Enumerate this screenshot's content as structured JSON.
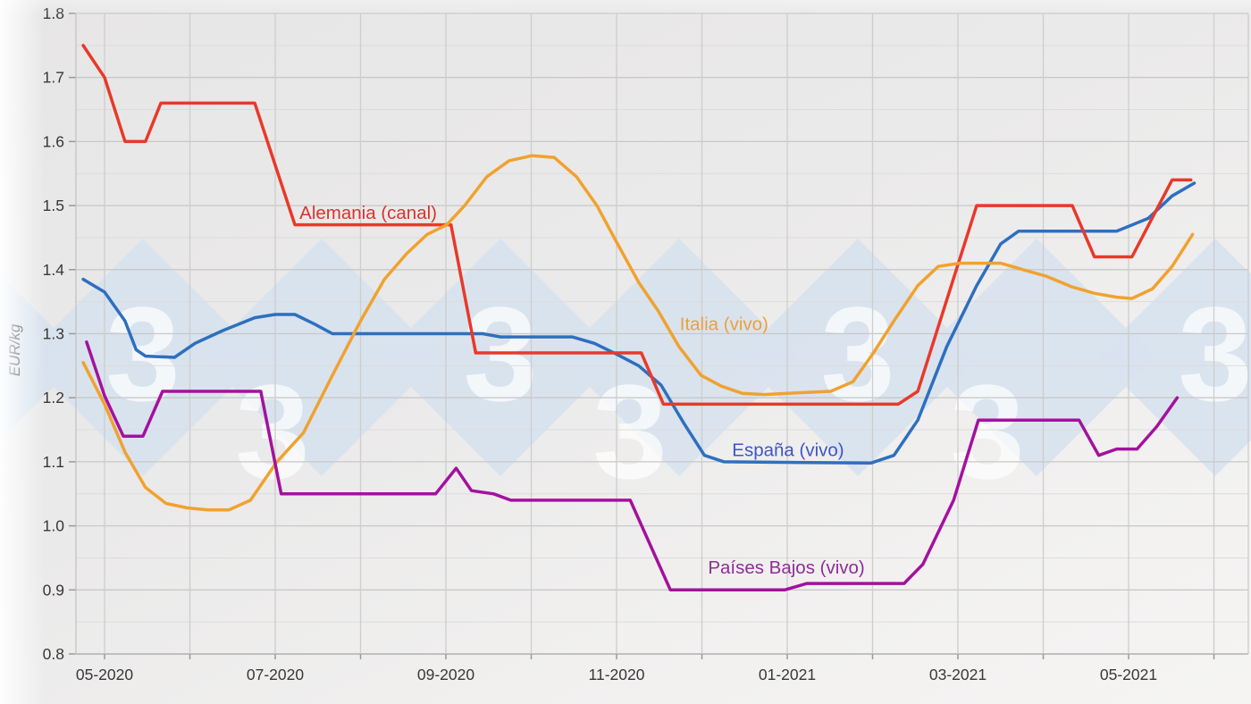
{
  "page": {
    "background_base": "#eaeaea"
  },
  "watermark": {
    "glyph": "3",
    "diamond_color": "#d8e3ee",
    "glyph_color": "#ffffff"
  },
  "chart_data": {
    "type": "line",
    "title": "",
    "ylabel": "EUR/kg",
    "xlabel": "",
    "y_range": [
      0.8,
      1.8
    ],
    "x_domain_months": [
      -0.335,
      13.4
    ],
    "grid": {
      "major_step": 0.1,
      "minor_step": 0.05,
      "x_step_months": 1,
      "grid_on": true,
      "legend": "inline-labels"
    },
    "y_ticks": [
      "0.8",
      "0.9",
      "1.0",
      "1.1",
      "1.2",
      "1.3",
      "1.4",
      "1.5",
      "1.6",
      "1.7",
      "1.8"
    ],
    "x_ticks": [
      {
        "t": 0,
        "label": "05-2020"
      },
      {
        "t": 2,
        "label": "07-2020"
      },
      {
        "t": 4,
        "label": "09-2020"
      },
      {
        "t": 6,
        "label": "11-2020"
      },
      {
        "t": 8,
        "label": "01-2021"
      },
      {
        "t": 10,
        "label": "03-2021"
      },
      {
        "t": 12,
        "label": "05-2021"
      }
    ],
    "series": [
      {
        "name": "España (vivo)",
        "color": "#2e6fbf",
        "label": {
          "text": "España (vivo)",
          "t": 8.01,
          "v": 1.119,
          "color": "#3c55c8"
        },
        "points": [
          [
            -0.25,
            1.385
          ],
          [
            0,
            1.365
          ],
          [
            0.24,
            1.32
          ],
          [
            0.37,
            1.275
          ],
          [
            0.48,
            1.265
          ],
          [
            0.82,
            1.263
          ],
          [
            1.06,
            1.285
          ],
          [
            1.39,
            1.305
          ],
          [
            1.76,
            1.325
          ],
          [
            2.0,
            1.33
          ],
          [
            2.23,
            1.33
          ],
          [
            2.46,
            1.315
          ],
          [
            2.67,
            1.3
          ],
          [
            4.43,
            1.3
          ],
          [
            4.64,
            1.295
          ],
          [
            5.48,
            1.295
          ],
          [
            5.74,
            1.285
          ],
          [
            6.0,
            1.268
          ],
          [
            6.26,
            1.25
          ],
          [
            6.52,
            1.22
          ],
          [
            6.79,
            1.16
          ],
          [
            7.03,
            1.11
          ],
          [
            7.26,
            1.1
          ],
          [
            8.98,
            1.098
          ],
          [
            9.25,
            1.11
          ],
          [
            9.53,
            1.165
          ],
          [
            9.87,
            1.28
          ],
          [
            10.22,
            1.375
          ],
          [
            10.5,
            1.44
          ],
          [
            10.71,
            1.46
          ],
          [
            11.86,
            1.46
          ],
          [
            12.23,
            1.48
          ],
          [
            12.51,
            1.515
          ],
          [
            12.77,
            1.535
          ]
        ]
      },
      {
        "name": "Alemania (canal)",
        "color": "#e8392a",
        "label": {
          "text": "Alemania (canal)",
          "t": 3.09,
          "v": 1.489,
          "color": "#d8342b"
        },
        "points": [
          [
            -0.25,
            1.75
          ],
          [
            0,
            1.7
          ],
          [
            0.24,
            1.6
          ],
          [
            0.48,
            1.6
          ],
          [
            0.66,
            1.66
          ],
          [
            1.76,
            1.66
          ],
          [
            2.23,
            1.47
          ],
          [
            4.06,
            1.47
          ],
          [
            4.35,
            1.27
          ],
          [
            6.29,
            1.27
          ],
          [
            6.55,
            1.19
          ],
          [
            9.3,
            1.19
          ],
          [
            9.53,
            1.21
          ],
          [
            10.22,
            1.5
          ],
          [
            11.34,
            1.5
          ],
          [
            11.6,
            1.42
          ],
          [
            12.04,
            1.42
          ],
          [
            12.51,
            1.54
          ],
          [
            12.73,
            1.54
          ]
        ]
      },
      {
        "name": "Italia (vivo)",
        "color": "#f0a22f",
        "label": {
          "text": "Italia (vivo)",
          "t": 7.26,
          "v": 1.315,
          "color": "#eaa13c"
        },
        "points": [
          [
            -0.25,
            1.255
          ],
          [
            0,
            1.19
          ],
          [
            0.24,
            1.115
          ],
          [
            0.48,
            1.06
          ],
          [
            0.72,
            1.035
          ],
          [
            0.97,
            1.028
          ],
          [
            1.21,
            1.025
          ],
          [
            1.46,
            1.025
          ],
          [
            1.71,
            1.04
          ],
          [
            2.02,
            1.1
          ],
          [
            2.33,
            1.145
          ],
          [
            2.67,
            1.235
          ],
          [
            3.0,
            1.32
          ],
          [
            3.28,
            1.385
          ],
          [
            3.54,
            1.425
          ],
          [
            3.78,
            1.455
          ],
          [
            4.01,
            1.47
          ],
          [
            4.22,
            1.5
          ],
          [
            4.48,
            1.545
          ],
          [
            4.74,
            1.57
          ],
          [
            5.01,
            1.578
          ],
          [
            5.27,
            1.575
          ],
          [
            5.53,
            1.545
          ],
          [
            5.77,
            1.5
          ],
          [
            6.0,
            1.443
          ],
          [
            6.26,
            1.38
          ],
          [
            6.49,
            1.335
          ],
          [
            6.73,
            1.28
          ],
          [
            6.99,
            1.235
          ],
          [
            7.23,
            1.218
          ],
          [
            7.47,
            1.207
          ],
          [
            7.73,
            1.205
          ],
          [
            8.01,
            1.207
          ],
          [
            8.51,
            1.21
          ],
          [
            8.77,
            1.225
          ],
          [
            9.01,
            1.27
          ],
          [
            9.25,
            1.32
          ],
          [
            9.53,
            1.375
          ],
          [
            9.77,
            1.405
          ],
          [
            10.02,
            1.41
          ],
          [
            10.5,
            1.41
          ],
          [
            10.76,
            1.4
          ],
          [
            11.03,
            1.39
          ],
          [
            11.34,
            1.373
          ],
          [
            11.6,
            1.363
          ],
          [
            11.86,
            1.357
          ],
          [
            12.04,
            1.355
          ],
          [
            12.28,
            1.37
          ],
          [
            12.51,
            1.405
          ],
          [
            12.75,
            1.455
          ]
        ]
      },
      {
        "name": "Países Bajos (vivo)",
        "color": "#a4119e",
        "label": {
          "text": "Países Bajos (vivo)",
          "t": 7.99,
          "v": 0.935,
          "color": "#8f2d97"
        },
        "points": [
          [
            -0.21,
            1.287
          ],
          [
            0,
            1.203
          ],
          [
            0.22,
            1.14
          ],
          [
            0.45,
            1.14
          ],
          [
            0.68,
            1.21
          ],
          [
            1.83,
            1.21
          ],
          [
            2.07,
            1.05
          ],
          [
            3.88,
            1.05
          ],
          [
            4.12,
            1.09
          ],
          [
            4.3,
            1.055
          ],
          [
            4.56,
            1.05
          ],
          [
            4.76,
            1.04
          ],
          [
            6.16,
            1.04
          ],
          [
            6.63,
            0.9
          ],
          [
            7.97,
            0.9
          ],
          [
            8.23,
            0.91
          ],
          [
            9.37,
            0.91
          ],
          [
            9.59,
            0.94
          ],
          [
            9.95,
            1.04
          ],
          [
            10.24,
            1.165
          ],
          [
            11.42,
            1.165
          ],
          [
            11.65,
            1.11
          ],
          [
            11.86,
            1.12
          ],
          [
            12.1,
            1.12
          ],
          [
            12.33,
            1.155
          ],
          [
            12.57,
            1.2
          ]
        ]
      }
    ]
  }
}
